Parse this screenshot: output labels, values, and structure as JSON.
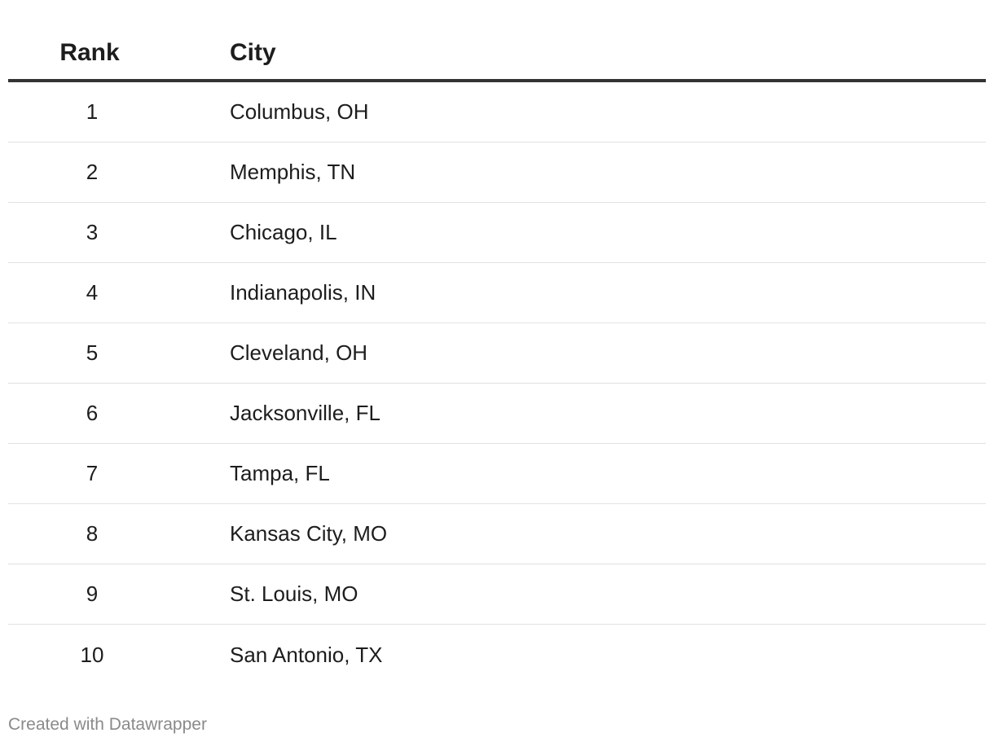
{
  "chart_data": {
    "type": "table",
    "columns": [
      "Rank",
      "City"
    ],
    "rows": [
      {
        "rank": "1",
        "city": "Columbus, OH"
      },
      {
        "rank": "2",
        "city": "Memphis, TN"
      },
      {
        "rank": "3",
        "city": "Chicago, IL"
      },
      {
        "rank": "4",
        "city": "Indianapolis, IN"
      },
      {
        "rank": "5",
        "city": "Cleveland, OH"
      },
      {
        "rank": "6",
        "city": "Jacksonville, FL"
      },
      {
        "rank": "7",
        "city": "Tampa, FL"
      },
      {
        "rank": "8",
        "city": "Kansas City, MO"
      },
      {
        "rank": "9",
        "city": "St. Louis, MO"
      },
      {
        "rank": "10",
        "city": "San Antonio, TX"
      }
    ]
  },
  "footer": {
    "credit": "Created with Datawrapper"
  },
  "colors": {
    "text": "#1d1d1d",
    "header_rule": "#333333",
    "row_rule": "#e2e2e2",
    "footer_text": "#8a8a8a"
  }
}
